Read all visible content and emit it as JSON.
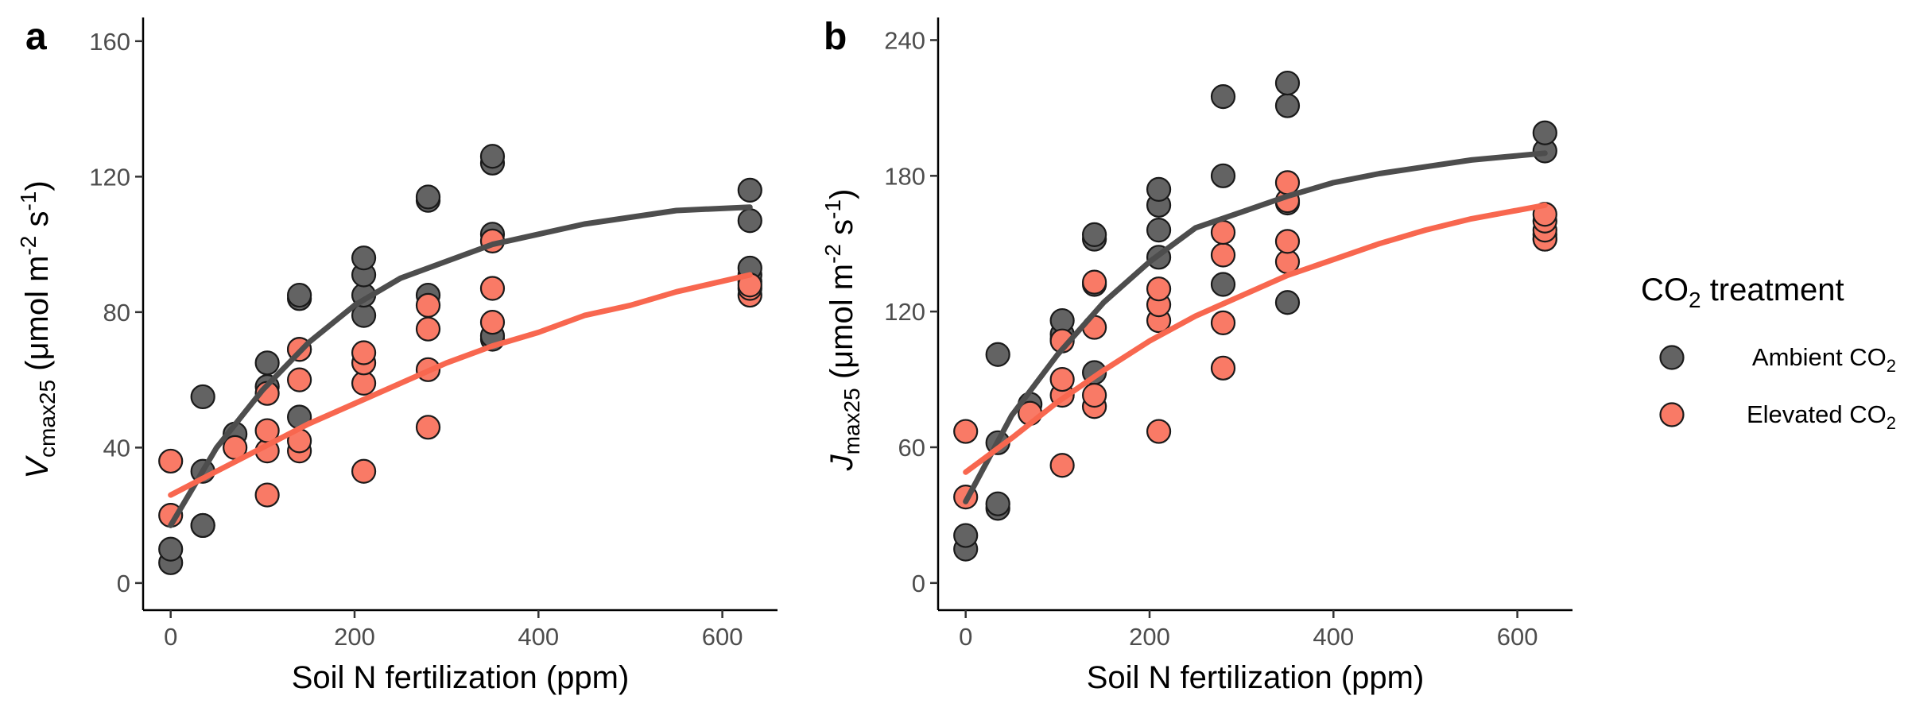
{
  "colors": {
    "ambient": "#4d4d4d",
    "elevated": "#f8674f",
    "ambient_point": "#636363",
    "elevated_point": "#f97a66",
    "point_stroke": "#1a1a1a",
    "axis": "#000000"
  },
  "legend": {
    "title": {
      "pre": "CO",
      "sub": "2",
      "post": " treatment"
    },
    "items": [
      {
        "key": "ambient",
        "pre": "Ambient CO",
        "sub": "2"
      },
      {
        "key": "elevated",
        "pre": "Elevated CO",
        "sub": "2"
      }
    ]
  },
  "chart_data": [
    {
      "type": "scatter",
      "panel": "a",
      "xlabel": "Soil N fertilization (ppm)",
      "ylabel": {
        "main": "V",
        "sub": "cmax25",
        "unit_pre": " (μmol m",
        "sup1": "-2",
        "unit_mid": " s",
        "sup2": "-1",
        "unit_post": ")"
      },
      "xlim": [
        -30,
        660
      ],
      "ylim": [
        -8,
        167
      ],
      "xticks": [
        0,
        200,
        400,
        600
      ],
      "yticks": [
        0,
        40,
        80,
        120,
        160
      ],
      "grid": false,
      "legend": "right",
      "series": [
        {
          "name": "Ambient CO2",
          "key": "ambient",
          "points": [
            [
              0,
              6
            ],
            [
              0,
              10
            ],
            [
              35,
              17
            ],
            [
              35,
              17
            ],
            [
              35,
              33
            ],
            [
              35,
              55
            ],
            [
              70,
              44
            ],
            [
              105,
              58
            ],
            [
              105,
              65
            ],
            [
              140,
              49
            ],
            [
              140,
              69
            ],
            [
              140,
              84
            ],
            [
              140,
              85
            ],
            [
              210,
              79
            ],
            [
              210,
              85
            ],
            [
              210,
              91
            ],
            [
              210,
              96
            ],
            [
              280,
              85
            ],
            [
              280,
              113
            ],
            [
              280,
              114
            ],
            [
              350,
              72
            ],
            [
              350,
              73
            ],
            [
              350,
              103
            ],
            [
              350,
              124
            ],
            [
              350,
              126
            ],
            [
              630,
              89
            ],
            [
              630,
              91
            ],
            [
              630,
              93
            ],
            [
              630,
              107
            ],
            [
              630,
              116
            ]
          ],
          "fit": [
            [
              0,
              17
            ],
            [
              50,
              40
            ],
            [
              100,
              57
            ],
            [
              150,
              71
            ],
            [
              200,
              82
            ],
            [
              250,
              90
            ],
            [
              300,
              95
            ],
            [
              350,
              100
            ],
            [
              400,
              103
            ],
            [
              450,
              106
            ],
            [
              500,
              108
            ],
            [
              550,
              110
            ],
            [
              630,
              111
            ]
          ]
        },
        {
          "name": "Elevated CO2",
          "key": "elevated",
          "points": [
            [
              0,
              36
            ],
            [
              0,
              20
            ],
            [
              70,
              40
            ],
            [
              105,
              26
            ],
            [
              105,
              39
            ],
            [
              105,
              45
            ],
            [
              105,
              56
            ],
            [
              140,
              39
            ],
            [
              140,
              42
            ],
            [
              140,
              60
            ],
            [
              140,
              69
            ],
            [
              210,
              33
            ],
            [
              210,
              59
            ],
            [
              210,
              65
            ],
            [
              210,
              68
            ],
            [
              280,
              46
            ],
            [
              280,
              63
            ],
            [
              280,
              75
            ],
            [
              280,
              82
            ],
            [
              350,
              77
            ],
            [
              350,
              87
            ],
            [
              350,
              101
            ],
            [
              630,
              85
            ],
            [
              630,
              87
            ],
            [
              630,
              88
            ]
          ],
          "fit": [
            [
              0,
              26
            ],
            [
              50,
              33
            ],
            [
              100,
              40
            ],
            [
              150,
              47
            ],
            [
              200,
              53
            ],
            [
              250,
              59
            ],
            [
              300,
              65
            ],
            [
              350,
              70
            ],
            [
              400,
              74
            ],
            [
              450,
              79
            ],
            [
              500,
              82
            ],
            [
              550,
              86
            ],
            [
              630,
              91
            ]
          ]
        }
      ]
    },
    {
      "type": "scatter",
      "panel": "b",
      "xlabel": "Soil N fertilization (ppm)",
      "ylabel": {
        "main": "J",
        "sub": "max25",
        "unit_pre": " (μmol m",
        "sup1": "-2",
        "unit_mid": " s",
        "sup2": "-1",
        "unit_post": ")"
      },
      "xlim": [
        -30,
        660
      ],
      "ylim": [
        -12,
        250
      ],
      "xticks": [
        0,
        200,
        400,
        600
      ],
      "yticks": [
        0,
        60,
        120,
        180,
        240
      ],
      "grid": false,
      "legend": "right",
      "series": [
        {
          "name": "Ambient CO2",
          "key": "ambient",
          "points": [
            [
              0,
              15
            ],
            [
              0,
              21
            ],
            [
              35,
              33
            ],
            [
              35,
              35
            ],
            [
              35,
              62
            ],
            [
              35,
              101
            ],
            [
              70,
              79
            ],
            [
              105,
              108
            ],
            [
              105,
              110
            ],
            [
              105,
              116
            ],
            [
              140,
              93
            ],
            [
              140,
              132
            ],
            [
              140,
              152
            ],
            [
              140,
              154
            ],
            [
              210,
              144
            ],
            [
              210,
              156
            ],
            [
              210,
              167
            ],
            [
              210,
              174
            ],
            [
              280,
              132
            ],
            [
              280,
              180
            ],
            [
              280,
              215
            ],
            [
              350,
              124
            ],
            [
              350,
              168
            ],
            [
              350,
              211
            ],
            [
              350,
              221
            ],
            [
              630,
              152
            ],
            [
              630,
              154
            ],
            [
              630,
              191
            ],
            [
              630,
              199
            ]
          ],
          "fit": [
            [
              0,
              36
            ],
            [
              50,
              74
            ],
            [
              100,
              101
            ],
            [
              150,
              124
            ],
            [
              200,
              142
            ],
            [
              250,
              157
            ],
            [
              300,
              164
            ],
            [
              350,
              171
            ],
            [
              400,
              177
            ],
            [
              450,
              181
            ],
            [
              500,
              184
            ],
            [
              550,
              187
            ],
            [
              630,
              190
            ]
          ]
        },
        {
          "name": "Elevated CO2",
          "key": "elevated",
          "points": [
            [
              0,
              67
            ],
            [
              0,
              38
            ],
            [
              70,
              75
            ],
            [
              105,
              52
            ],
            [
              105,
              83
            ],
            [
              105,
              90
            ],
            [
              105,
              107
            ],
            [
              140,
              78
            ],
            [
              140,
              83
            ],
            [
              140,
              113
            ],
            [
              140,
              133
            ],
            [
              210,
              67
            ],
            [
              210,
              116
            ],
            [
              210,
              123
            ],
            [
              210,
              130
            ],
            [
              280,
              95
            ],
            [
              280,
              115
            ],
            [
              280,
              145
            ],
            [
              280,
              155
            ],
            [
              350,
              142
            ],
            [
              350,
              151
            ],
            [
              350,
              169
            ],
            [
              350,
              177
            ],
            [
              630,
              152
            ],
            [
              630,
              156
            ],
            [
              630,
              160
            ],
            [
              630,
              163
            ]
          ],
          "fit": [
            [
              0,
              49
            ],
            [
              50,
              64
            ],
            [
              100,
              80
            ],
            [
              150,
              94
            ],
            [
              200,
              107
            ],
            [
              250,
              118
            ],
            [
              300,
              127
            ],
            [
              350,
              136
            ],
            [
              400,
              143
            ],
            [
              450,
              150
            ],
            [
              500,
              156
            ],
            [
              550,
              161
            ],
            [
              630,
              167
            ]
          ]
        }
      ]
    }
  ]
}
